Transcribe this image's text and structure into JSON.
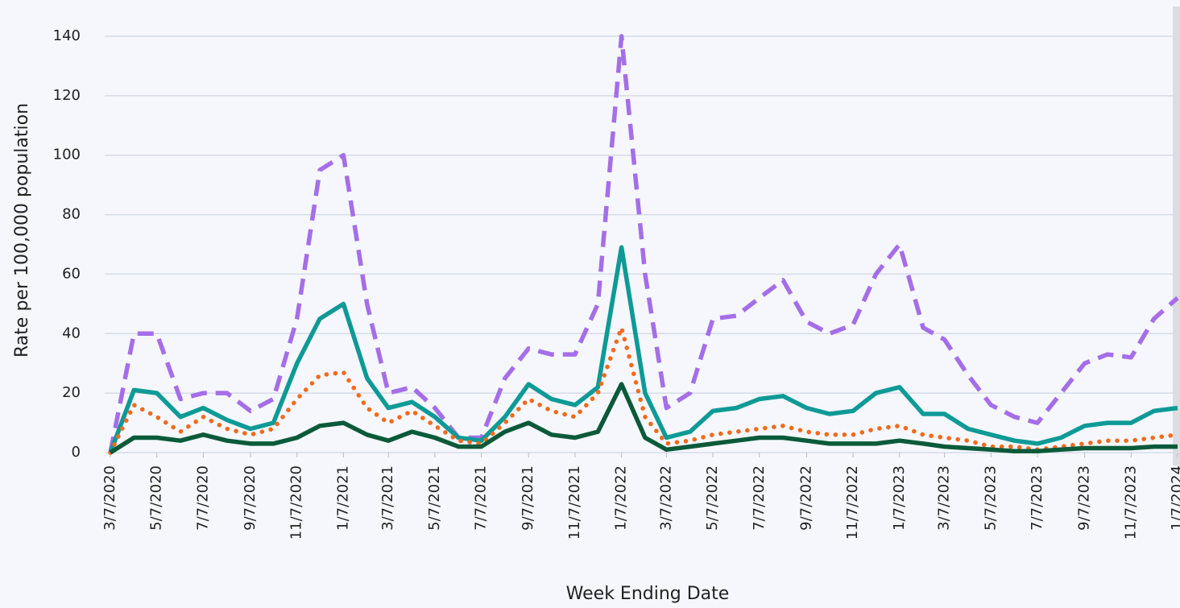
{
  "chart_data": {
    "type": "line",
    "xlabel": "Week Ending Date",
    "ylabel": "Rate per 100,000 population",
    "x": [
      "3/7/2020",
      "4/7/2020",
      "5/7/2020",
      "6/7/2020",
      "7/7/2020",
      "8/7/2020",
      "9/7/2020",
      "10/7/2020",
      "11/7/2020",
      "12/7/2020",
      "1/7/2021",
      "2/7/2021",
      "3/7/2021",
      "4/7/2021",
      "5/7/2021",
      "6/7/2021",
      "7/7/2021",
      "8/7/2021",
      "9/7/2021",
      "10/7/2021",
      "11/7/2021",
      "12/7/2021",
      "1/7/2022",
      "2/7/2022",
      "3/7/2022",
      "4/7/2022",
      "5/7/2022",
      "6/7/2022",
      "7/7/2022",
      "8/7/2022",
      "9/7/2022",
      "10/7/2022",
      "11/7/2022",
      "12/7/2022",
      "1/7/2023",
      "2/7/2023",
      "3/7/2023",
      "4/7/2023",
      "5/7/2023",
      "6/7/2023",
      "7/7/2023",
      "8/7/2023",
      "9/7/2023",
      "10/7/2023",
      "11/7/2023",
      "12/7/2023",
      "1/7/2024"
    ],
    "series": [
      {
        "color": "#a56ee8",
        "style": "dashed",
        "values": [
          0,
          40,
          40,
          18,
          20,
          20,
          14,
          18,
          45,
          95,
          100,
          50,
          20,
          22,
          15,
          5,
          5,
          25,
          35,
          33,
          33,
          50,
          140,
          60,
          15,
          20,
          45,
          46,
          52,
          58,
          44,
          40,
          43,
          60,
          70,
          42,
          38,
          26,
          16,
          12,
          10,
          20,
          30,
          33,
          32,
          45,
          52
        ]
      },
      {
        "color": "#0e9a96",
        "style": "solid",
        "values": [
          0,
          21,
          20,
          12,
          15,
          11,
          8,
          10,
          30,
          45,
          50,
          25,
          15,
          17,
          12,
          5,
          4,
          12,
          23,
          18,
          16,
          22,
          69,
          20,
          5,
          7,
          14,
          15,
          18,
          19,
          15,
          13,
          14,
          20,
          22,
          13,
          13,
          8,
          6,
          4,
          3,
          5,
          9,
          10,
          10,
          14,
          15
        ]
      },
      {
        "color": "#f26a1b",
        "style": "dotted",
        "values": [
          0,
          16,
          12,
          7,
          12,
          8,
          6,
          8,
          18,
          26,
          27,
          15,
          10,
          14,
          9,
          4,
          3,
          10,
          18,
          14,
          12,
          20,
          42,
          12,
          3,
          4,
          6,
          7,
          8,
          9,
          7,
          6,
          6,
          8,
          9,
          6,
          5,
          4,
          2,
          2,
          1,
          2,
          3,
          4,
          4,
          5,
          6
        ]
      },
      {
        "color": "#0b5a3a",
        "style": "solid",
        "values": [
          0,
          5,
          5,
          4,
          6,
          4,
          3,
          3,
          5,
          9,
          10,
          6,
          4,
          7,
          5,
          2,
          2,
          7,
          10,
          6,
          5,
          7,
          23,
          5,
          1,
          2,
          3,
          4,
          5,
          5,
          4,
          3,
          3,
          3,
          4,
          3,
          2,
          1.5,
          1,
          0.5,
          0.5,
          1,
          1.5,
          1.5,
          1.5,
          2,
          2
        ]
      }
    ],
    "xlim": [
      "3/7/2020",
      "1/7/2024"
    ],
    "xticks": [
      "3/7/2020",
      "5/7/2020",
      "7/7/2020",
      "9/7/2020",
      "11/7/2020",
      "1/7/2021",
      "3/7/2021",
      "5/7/2021",
      "7/7/2021",
      "9/7/2021",
      "11/7/2021",
      "1/7/2022",
      "3/7/2022",
      "5/7/2022",
      "7/7/2022",
      "9/7/2022",
      "11/7/2022",
      "1/7/2023",
      "3/7/2023",
      "5/7/2023",
      "7/7/2023",
      "9/7/2023",
      "11/7/2023",
      "1/7/2024"
    ],
    "ylim": [
      0,
      150
    ],
    "yticks": [
      0,
      20,
      40,
      60,
      80,
      100,
      120,
      140
    ],
    "grid": true
  }
}
